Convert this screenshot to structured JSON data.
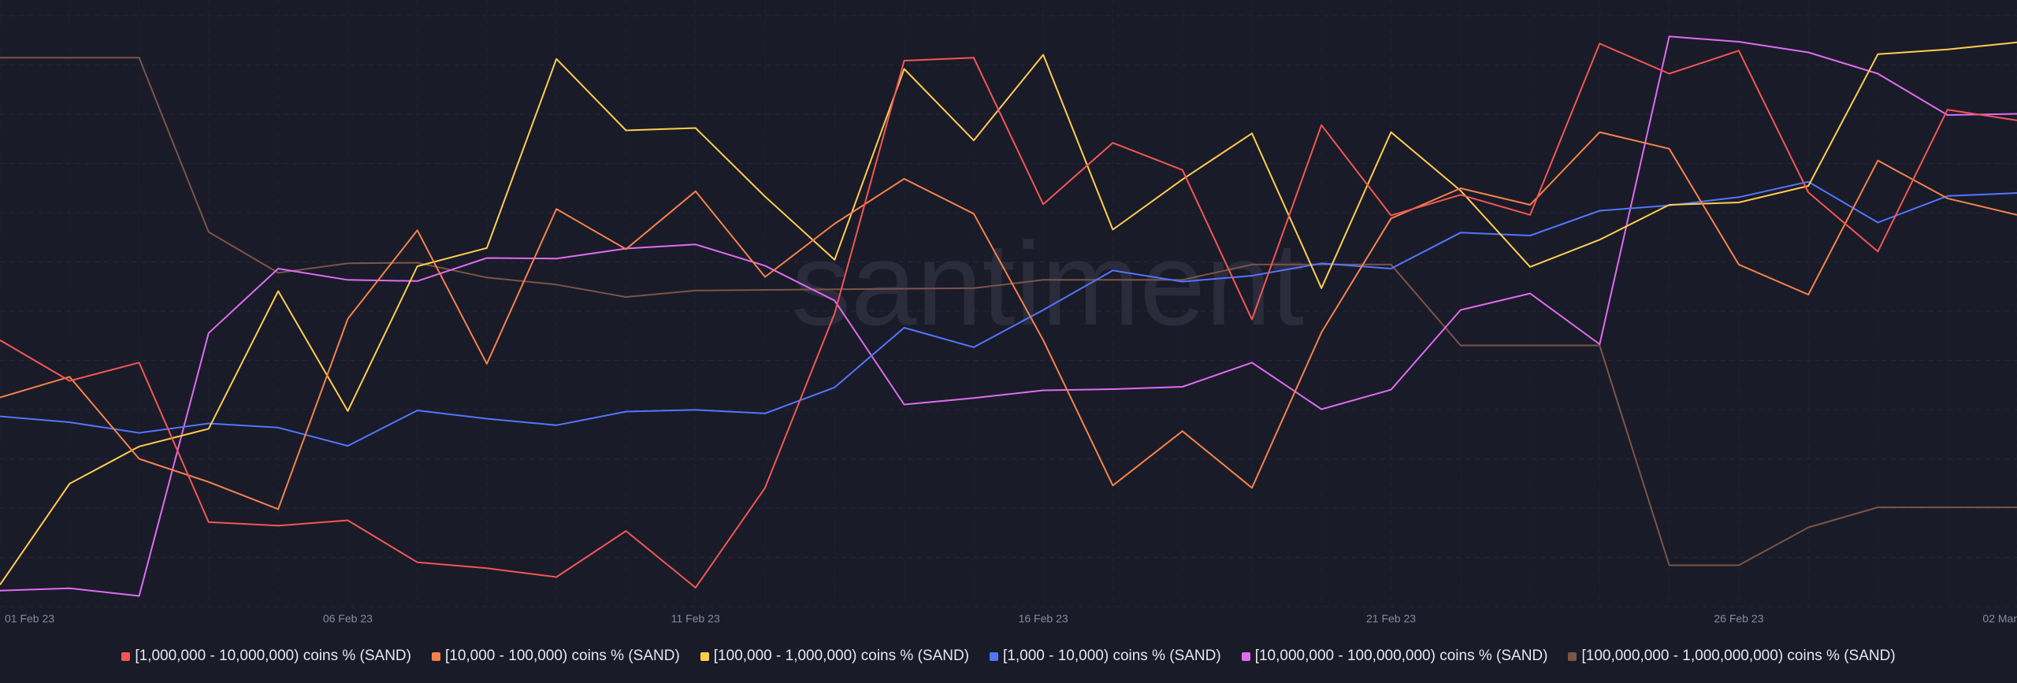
{
  "watermark": "santiment",
  "chart_data": {
    "type": "line",
    "x": [
      "01 Feb 23",
      "02 Feb 23",
      "03 Feb 23",
      "04 Feb 23",
      "05 Feb 23",
      "06 Feb 23",
      "07 Feb 23",
      "08 Feb 23",
      "09 Feb 23",
      "10 Feb 23",
      "11 Feb 23",
      "12 Feb 23",
      "13 Feb 23",
      "14 Feb 23",
      "15 Feb 23",
      "16 Feb 23",
      "17 Feb 23",
      "18 Feb 23",
      "19 Feb 23",
      "20 Feb 23",
      "21 Feb 23",
      "22 Feb 23",
      "23 Feb 23",
      "24 Feb 23",
      "25 Feb 23",
      "26 Feb 23",
      "27 Feb 23",
      "28 Feb 23",
      "01 Mar 23",
      "02 Mar 23"
    ],
    "x_tick_labels": [
      "01 Feb 23",
      "06 Feb 23",
      "11 Feb 23",
      "16 Feb 23",
      "21 Feb 23",
      "26 Feb 23",
      "02 Mar"
    ],
    "x_tick_indices": [
      0,
      5,
      10,
      15,
      20,
      25,
      29
    ],
    "y_axis_note": "independent normalized scale per series, no y tick labels shown",
    "grid": true,
    "legend_position": "bottom",
    "series": [
      {
        "name": "[1,000,000 - 10,000,000) coins % (SAND)",
        "color": "#f25655",
        "values": [
          45.1,
          38.2,
          41.3,
          14.3,
          13.7,
          14.6,
          7.5,
          6.5,
          5.0,
          12.8,
          3.2,
          20.1,
          49.6,
          92.4,
          92.9,
          68.1,
          78.5,
          73.9,
          48.6,
          81.5,
          66.2,
          69.7,
          66.3,
          95.3,
          90.2,
          94.1,
          70.1,
          60.1,
          84.1,
          82.3
        ]
      },
      {
        "name": "[10,000 - 100,000) coins % (SAND)",
        "color": "#f5824b",
        "values": [
          35.4,
          38.9,
          25.0,
          21.1,
          16.5,
          48.7,
          63.7,
          41.1,
          67.3,
          60.5,
          70.3,
          55.8,
          64.8,
          72.4,
          66.5,
          45.1,
          20.5,
          29.7,
          20.1,
          46.4,
          65.7,
          70.8,
          68.0,
          80.3,
          77.5,
          57.9,
          52.8,
          75.5,
          69.1,
          66.3
        ]
      },
      {
        "name": "[100,000  - 1,000,000) coins % (SAND)",
        "color": "#ffcd4e",
        "values": [
          3.7,
          20.8,
          27.1,
          30.1,
          53.4,
          33.1,
          57.6,
          60.7,
          92.7,
          80.6,
          81.0,
          69.4,
          58.7,
          91.0,
          78.9,
          93.4,
          63.8,
          72.3,
          80.1,
          53.9,
          80.3,
          70.4,
          57.5,
          62.1,
          68.0,
          68.4,
          71.2,
          93.5,
          94.3,
          95.5
        ]
      },
      {
        "name": "[1,000 - 10,000) coins % (SAND)",
        "color": "#5275ff",
        "values": [
          32.2,
          31.2,
          29.4,
          31.0,
          30.3,
          27.2,
          33.2,
          31.8,
          30.7,
          33.0,
          33.3,
          32.7,
          37.1,
          47.2,
          43.9,
          50.2,
          56.9,
          55.0,
          56.0,
          58.1,
          57.2,
          63.3,
          62.8,
          67.0,
          67.9,
          69.3,
          71.9,
          65.0,
          69.5,
          70.0
        ]
      },
      {
        "name": "[10,000,000 - 100,000,000) coins % (SAND)",
        "color": "#de6cf1",
        "values": [
          2.7,
          3.1,
          1.8,
          46.3,
          57.2,
          55.3,
          55.1,
          59.0,
          58.9,
          60.6,
          61.3,
          57.7,
          51.8,
          34.2,
          35.3,
          36.6,
          36.8,
          37.2,
          41.3,
          33.4,
          36.7,
          50.2,
          53.0,
          44.4,
          96.5,
          95.6,
          93.8,
          90.2,
          83.2,
          83.4
        ]
      },
      {
        "name": "[100,000,000 - 1,000,000,000) coins % (SAND)",
        "color": "#7c5448",
        "values": [
          92.9,
          92.9,
          92.9,
          63.4,
          56.5,
          58.1,
          58.2,
          55.7,
          54.5,
          52.4,
          53.5,
          53.6,
          53.7,
          53.8,
          53.9,
          55.3,
          55.3,
          55.3,
          57.9,
          57.9,
          57.9,
          44.2,
          44.2,
          44.2,
          7.0,
          7.0,
          13.4,
          16.8,
          16.8,
          16.8
        ]
      }
    ]
  }
}
